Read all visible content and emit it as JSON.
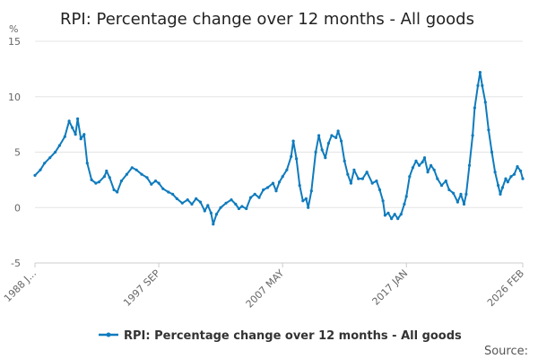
{
  "chart_data": {
    "type": "line",
    "title": "RPI: Percentage change over 12 months - All goods",
    "ylabel": "%",
    "ylim": [
      -5,
      15
    ],
    "yticks": [
      -5,
      0,
      5,
      10,
      15
    ],
    "xlim": [
      "1988-01",
      "2026-02"
    ],
    "xtick_labels": [
      {
        "date": "1988-01",
        "label": "1988 J..."
      },
      {
        "date": "1997-09",
        "label": "1997 SEP"
      },
      {
        "date": "2007-05",
        "label": "2007 MAY"
      },
      {
        "date": "2017-01",
        "label": "2017 JAN"
      },
      {
        "date": "2026-02",
        "label": "2026 FEB"
      }
    ],
    "grid": true,
    "legend": "bottom",
    "series": [
      {
        "name": "RPI: Percentage change over 12 months - All goods",
        "color": "#0f7bbd",
        "points": [
          [
            "1988-01",
            2.9
          ],
          [
            "1988-06",
            3.4
          ],
          [
            "1988-10",
            4.0
          ],
          [
            "1989-03",
            4.5
          ],
          [
            "1989-08",
            5.0
          ],
          [
            "1989-12",
            5.6
          ],
          [
            "1990-05",
            6.4
          ],
          [
            "1990-09",
            7.8
          ],
          [
            "1990-12",
            7.2
          ],
          [
            "1991-03",
            6.6
          ],
          [
            "1991-05",
            8.0
          ],
          [
            "1991-08",
            6.2
          ],
          [
            "1991-11",
            6.6
          ],
          [
            "1992-02",
            4.0
          ],
          [
            "1992-06",
            2.5
          ],
          [
            "1992-10",
            2.2
          ],
          [
            "1993-01",
            2.3
          ],
          [
            "1993-06",
            2.8
          ],
          [
            "1993-08",
            3.3
          ],
          [
            "1993-11",
            2.7
          ],
          [
            "1994-03",
            1.6
          ],
          [
            "1994-06",
            1.4
          ],
          [
            "1994-10",
            2.4
          ],
          [
            "1995-03",
            3.0
          ],
          [
            "1995-08",
            3.6
          ],
          [
            "1995-12",
            3.4
          ],
          [
            "1996-05",
            3.0
          ],
          [
            "1996-10",
            2.7
          ],
          [
            "1997-02",
            2.1
          ],
          [
            "1997-06",
            2.4
          ],
          [
            "1997-09",
            2.2
          ],
          [
            "1998-01",
            1.7
          ],
          [
            "1998-06",
            1.4
          ],
          [
            "1998-10",
            1.2
          ],
          [
            "1999-02",
            0.8
          ],
          [
            "1999-07",
            0.4
          ],
          [
            "1999-12",
            0.7
          ],
          [
            "2000-04",
            0.3
          ],
          [
            "2000-08",
            0.8
          ],
          [
            "2000-12",
            0.5
          ],
          [
            "2001-04",
            -0.3
          ],
          [
            "2001-07",
            0.2
          ],
          [
            "2001-10",
            -0.5
          ],
          [
            "2001-12",
            -1.5
          ],
          [
            "2002-03",
            -0.6
          ],
          [
            "2002-07",
            0.0
          ],
          [
            "2002-12",
            0.4
          ],
          [
            "2003-05",
            0.7
          ],
          [
            "2003-09",
            0.3
          ],
          [
            "2003-12",
            -0.1
          ],
          [
            "2004-03",
            0.1
          ],
          [
            "2004-07",
            -0.1
          ],
          [
            "2004-11",
            0.9
          ],
          [
            "2005-03",
            1.2
          ],
          [
            "2005-07",
            0.9
          ],
          [
            "2005-11",
            1.6
          ],
          [
            "2006-03",
            1.8
          ],
          [
            "2006-08",
            2.2
          ],
          [
            "2006-11",
            1.5
          ],
          [
            "2007-02",
            2.3
          ],
          [
            "2007-05",
            2.8
          ],
          [
            "2007-09",
            3.4
          ],
          [
            "2008-01",
            4.6
          ],
          [
            "2008-03",
            6.0
          ],
          [
            "2008-06",
            4.4
          ],
          [
            "2008-09",
            2.0
          ],
          [
            "2008-12",
            0.6
          ],
          [
            "2009-03",
            0.8
          ],
          [
            "2009-05",
            0.0
          ],
          [
            "2009-08",
            1.5
          ],
          [
            "2009-12",
            5.0
          ],
          [
            "2010-03",
            6.5
          ],
          [
            "2010-06",
            5.2
          ],
          [
            "2010-09",
            4.5
          ],
          [
            "2010-12",
            5.8
          ],
          [
            "2011-03",
            6.5
          ],
          [
            "2011-07",
            6.3
          ],
          [
            "2011-09",
            6.9
          ],
          [
            "2011-12",
            6.0
          ],
          [
            "2012-03",
            4.2
          ],
          [
            "2012-06",
            3.0
          ],
          [
            "2012-09",
            2.2
          ],
          [
            "2012-12",
            3.4
          ],
          [
            "2013-04",
            2.6
          ],
          [
            "2013-08",
            2.6
          ],
          [
            "2013-12",
            3.2
          ],
          [
            "2014-05",
            2.2
          ],
          [
            "2014-09",
            2.4
          ],
          [
            "2014-12",
            1.6
          ],
          [
            "2015-03",
            0.6
          ],
          [
            "2015-05",
            -0.7
          ],
          [
            "2015-08",
            -0.5
          ],
          [
            "2015-11",
            -1.0
          ],
          [
            "2016-02",
            -0.6
          ],
          [
            "2016-05",
            -1.0
          ],
          [
            "2016-08",
            -0.6
          ],
          [
            "2016-11",
            0.3
          ],
          [
            "2017-01",
            1.0
          ],
          [
            "2017-04",
            2.8
          ],
          [
            "2017-07",
            3.6
          ],
          [
            "2017-10",
            4.2
          ],
          [
            "2018-01",
            3.8
          ],
          [
            "2018-04",
            4.1
          ],
          [
            "2018-06",
            4.5
          ],
          [
            "2018-09",
            3.2
          ],
          [
            "2018-12",
            3.8
          ],
          [
            "2019-03",
            3.4
          ],
          [
            "2019-06",
            2.6
          ],
          [
            "2019-10",
            2.0
          ],
          [
            "2020-02",
            2.4
          ],
          [
            "2020-05",
            1.6
          ],
          [
            "2020-09",
            1.3
          ],
          [
            "2021-01",
            0.5
          ],
          [
            "2021-04",
            1.2
          ],
          [
            "2021-07",
            0.3
          ],
          [
            "2021-09",
            1.2
          ],
          [
            "2021-12",
            3.8
          ],
          [
            "2022-03",
            6.5
          ],
          [
            "2022-05",
            9.0
          ],
          [
            "2022-08",
            11.0
          ],
          [
            "2022-10",
            12.2
          ],
          [
            "2022-12",
            11.0
          ],
          [
            "2023-03",
            9.5
          ],
          [
            "2023-06",
            7.0
          ],
          [
            "2023-09",
            5.0
          ],
          [
            "2023-12",
            3.2
          ],
          [
            "2024-03",
            2.0
          ],
          [
            "2024-05",
            1.2
          ],
          [
            "2024-07",
            1.8
          ],
          [
            "2024-10",
            2.6
          ],
          [
            "2024-12",
            2.3
          ],
          [
            "2025-03",
            2.8
          ],
          [
            "2025-06",
            3.0
          ],
          [
            "2025-09",
            3.7
          ],
          [
            "2025-12",
            3.3
          ],
          [
            "2026-02",
            2.6
          ]
        ]
      }
    ],
    "source": "Source:"
  }
}
